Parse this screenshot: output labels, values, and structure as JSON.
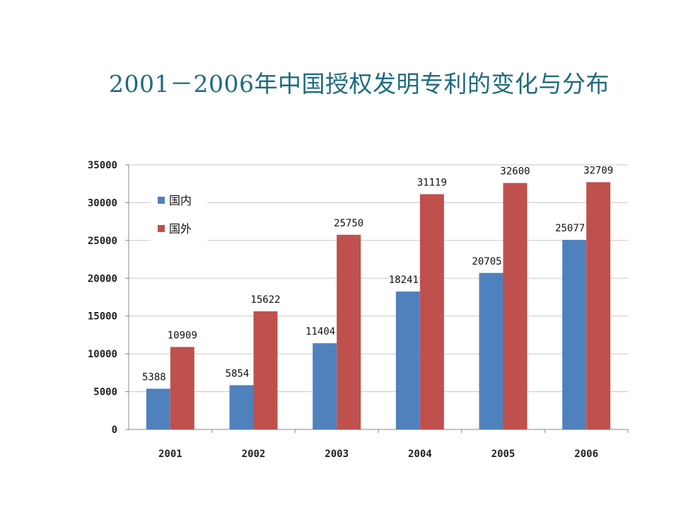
{
  "title": "2001－2006年中国授权发明专利的变化与分布",
  "colors": {
    "domestic": "#4f81bd",
    "foreign": "#c0504d",
    "title": "#1e6b7f",
    "grid": "#c8c8c8"
  },
  "chart_data": {
    "type": "bar",
    "title": "2001－2006年中国授权发明专利的变化与分布",
    "categories": [
      "2001",
      "2002",
      "2003",
      "2004",
      "2005",
      "2006"
    ],
    "series": [
      {
        "name": "国内",
        "values": [
          5388,
          5854,
          11404,
          18241,
          20705,
          25077
        ]
      },
      {
        "name": "国外",
        "values": [
          10909,
          15622,
          25750,
          31119,
          32600,
          32709
        ]
      }
    ],
    "ylim": [
      0,
      35000
    ],
    "yticks": [
      0,
      5000,
      10000,
      15000,
      20000,
      25000,
      30000,
      35000
    ],
    "grid": true,
    "legend_position": "top-left",
    "xlabel": "",
    "ylabel": ""
  }
}
